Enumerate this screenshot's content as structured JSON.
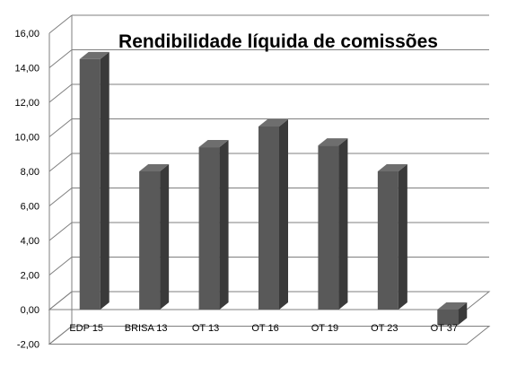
{
  "chart_data": {
    "type": "bar",
    "title": "Rendibilidade líquida de comissões",
    "categories": [
      "EDP 15",
      "BRISA 13",
      "OT 13",
      "OT 16",
      "OT 19",
      "OT 23",
      "OT 37"
    ],
    "values": [
      14.5,
      8.0,
      9.4,
      10.6,
      9.5,
      8.0,
      -0.9
    ],
    "ylim": [
      -2,
      16
    ],
    "yticks": [
      "-2,00",
      "0,00",
      "2,00",
      "4,00",
      "6,00",
      "8,00",
      "10,00",
      "12,00",
      "14,00",
      "16,00"
    ],
    "grid": true,
    "legend": "none",
    "bar_color": "#595959",
    "bar_side_color": "#3a3a3a",
    "bar_top_color": "#6e6e6e",
    "grid_color": "#7f7f7f",
    "wall_color": "#ffffff"
  }
}
